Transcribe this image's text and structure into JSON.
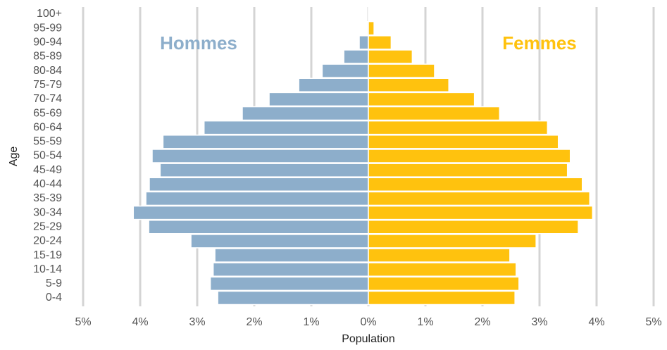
{
  "chart_data": {
    "type": "pyramid",
    "xlabel": "Population",
    "ylabel": "Age",
    "categories": [
      "0-4",
      "5-9",
      "10-14",
      "15-19",
      "20-24",
      "25-29",
      "30-34",
      "35-39",
      "40-44",
      "45-49",
      "50-54",
      "55-59",
      "60-64",
      "65-69",
      "70-74",
      "75-79",
      "80-84",
      "85-89",
      "90-94",
      "95-99",
      "100+"
    ],
    "series": [
      {
        "name": "Hommes",
        "color": "#8daecb",
        "values": [
          2.64,
          2.77,
          2.72,
          2.69,
          3.11,
          3.85,
          4.12,
          3.9,
          3.84,
          3.65,
          3.79,
          3.6,
          2.88,
          2.21,
          1.74,
          1.22,
          0.81,
          0.43,
          0.16,
          0.02,
          0.0
        ]
      },
      {
        "name": "Femmes",
        "color": "#ffc20e",
        "values": [
          2.57,
          2.64,
          2.59,
          2.48,
          2.94,
          3.68,
          3.93,
          3.88,
          3.75,
          3.49,
          3.54,
          3.33,
          3.14,
          2.3,
          1.86,
          1.41,
          1.16,
          0.77,
          0.4,
          0.1,
          0.01
        ]
      }
    ],
    "xlim": [
      -5,
      5
    ],
    "xticks": [
      {
        "value": -5,
        "label": "5%"
      },
      {
        "value": -4,
        "label": "4%"
      },
      {
        "value": -3,
        "label": "3%"
      },
      {
        "value": -2,
        "label": "2%"
      },
      {
        "value": -1,
        "label": "1%"
      },
      {
        "value": 0,
        "label": "0%"
      },
      {
        "value": 1,
        "label": "1%"
      },
      {
        "value": 2,
        "label": "2%"
      },
      {
        "value": 3,
        "label": "3%"
      },
      {
        "value": 4,
        "label": "4%"
      },
      {
        "value": 5,
        "label": "5%"
      }
    ],
    "grid": true
  }
}
